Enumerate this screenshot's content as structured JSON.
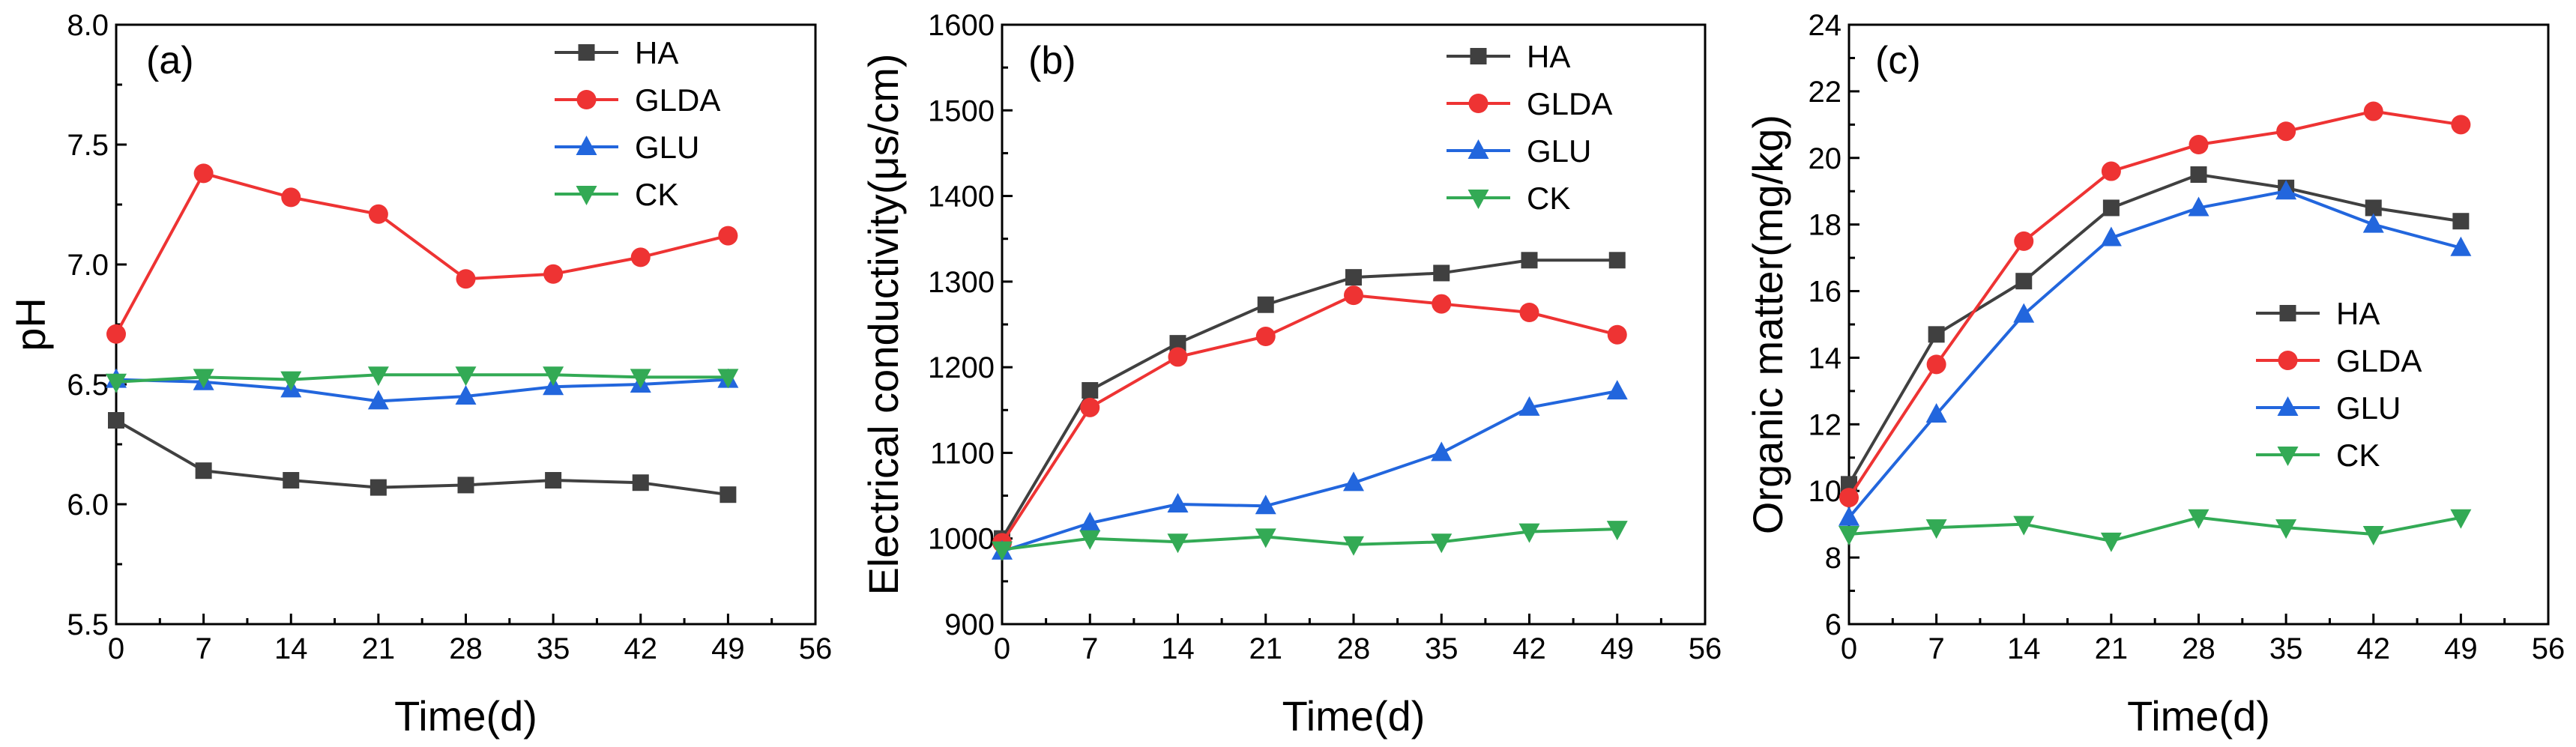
{
  "colors": {
    "HA": "#404040",
    "GLDA": "#ee3333",
    "GLU": "#2266dd",
    "CK": "#33aa55",
    "axis": "#000000",
    "background": "#ffffff"
  },
  "markers": {
    "HA": "square",
    "GLDA": "circle",
    "GLU": "triangle-up",
    "CK": "triangle-down"
  },
  "chart_data": [
    {
      "type": "line",
      "panel_label": "(a)",
      "xlabel": "Time(d)",
      "ylabel": "pH",
      "xlim": [
        0,
        56
      ],
      "ylim": [
        5.5,
        8.0
      ],
      "xticks": [
        0,
        7,
        14,
        21,
        28,
        35,
        42,
        49,
        56
      ],
      "yticks": [
        5.5,
        6.0,
        6.5,
        7.0,
        7.5,
        8.0
      ],
      "ytick_labels": [
        "5.5",
        "6.0",
        "6.5",
        "7.0",
        "7.5",
        "8.0"
      ],
      "legend": "top-right",
      "x": [
        0,
        7,
        14,
        21,
        28,
        35,
        42,
        49
      ],
      "series": [
        {
          "name": "HA",
          "values": [
            6.35,
            6.14,
            6.1,
            6.07,
            6.08,
            6.1,
            6.09,
            6.04
          ]
        },
        {
          "name": "GLDA",
          "values": [
            6.71,
            7.38,
            7.28,
            7.21,
            6.94,
            6.96,
            7.03,
            7.12
          ]
        },
        {
          "name": "GLU",
          "values": [
            6.52,
            6.51,
            6.48,
            6.43,
            6.45,
            6.49,
            6.5,
            6.52
          ]
        },
        {
          "name": "CK",
          "values": [
            6.51,
            6.53,
            6.52,
            6.54,
            6.54,
            6.54,
            6.53,
            6.53
          ]
        }
      ]
    },
    {
      "type": "line",
      "panel_label": "(b)",
      "xlabel": "Time(d)",
      "ylabel": "Electrical conductivity(μs/cm)",
      "xlim": [
        0,
        56
      ],
      "ylim": [
        900,
        1600
      ],
      "xticks": [
        0,
        7,
        14,
        21,
        28,
        35,
        42,
        49,
        56
      ],
      "yticks": [
        900,
        1000,
        1100,
        1200,
        1300,
        1400,
        1500,
        1600
      ],
      "ytick_labels": [
        "900",
        "1000",
        "1100",
        "1200",
        "1300",
        "1400",
        "1500",
        "1600"
      ],
      "legend": "top-right",
      "x": [
        0,
        7,
        14,
        21,
        28,
        35,
        42,
        49
      ],
      "series": [
        {
          "name": "HA",
          "values": [
            1000,
            1173,
            1228,
            1273,
            1305,
            1310,
            1325,
            1325
          ]
        },
        {
          "name": "GLDA",
          "values": [
            995,
            1153,
            1212,
            1236,
            1284,
            1274,
            1264,
            1238
          ]
        },
        {
          "name": "GLU",
          "values": [
            985,
            1018,
            1040,
            1038,
            1065,
            1100,
            1153,
            1172
          ]
        },
        {
          "name": "CK",
          "values": [
            987,
            1000,
            996,
            1002,
            993,
            996,
            1008,
            1011
          ]
        }
      ]
    },
    {
      "type": "line",
      "panel_label": "(c)",
      "xlabel": "Time(d)",
      "ylabel": "Organic matter(mg/kg)",
      "xlim": [
        0,
        56
      ],
      "ylim": [
        6,
        24
      ],
      "xticks": [
        0,
        7,
        14,
        21,
        28,
        35,
        42,
        49,
        56
      ],
      "yticks": [
        6,
        8,
        10,
        12,
        14,
        16,
        18,
        20,
        22,
        24
      ],
      "ytick_labels": [
        "6",
        "8",
        "10",
        "12",
        "14",
        "16",
        "18",
        "20",
        "22",
        "24"
      ],
      "legend": "center-right",
      "x": [
        0,
        7,
        14,
        21,
        28,
        35,
        42,
        49
      ],
      "series": [
        {
          "name": "HA",
          "values": [
            10.2,
            14.7,
            16.3,
            18.5,
            19.5,
            19.1,
            18.5,
            18.1
          ]
        },
        {
          "name": "GLDA",
          "values": [
            9.8,
            13.8,
            17.5,
            19.6,
            20.4,
            20.8,
            21.4,
            21.0
          ]
        },
        {
          "name": "GLU",
          "values": [
            9.2,
            12.3,
            15.3,
            17.6,
            18.5,
            19.0,
            18.0,
            17.3
          ]
        },
        {
          "name": "CK",
          "values": [
            8.7,
            8.9,
            9.0,
            8.5,
            9.2,
            8.9,
            8.7,
            9.2
          ]
        }
      ]
    }
  ]
}
